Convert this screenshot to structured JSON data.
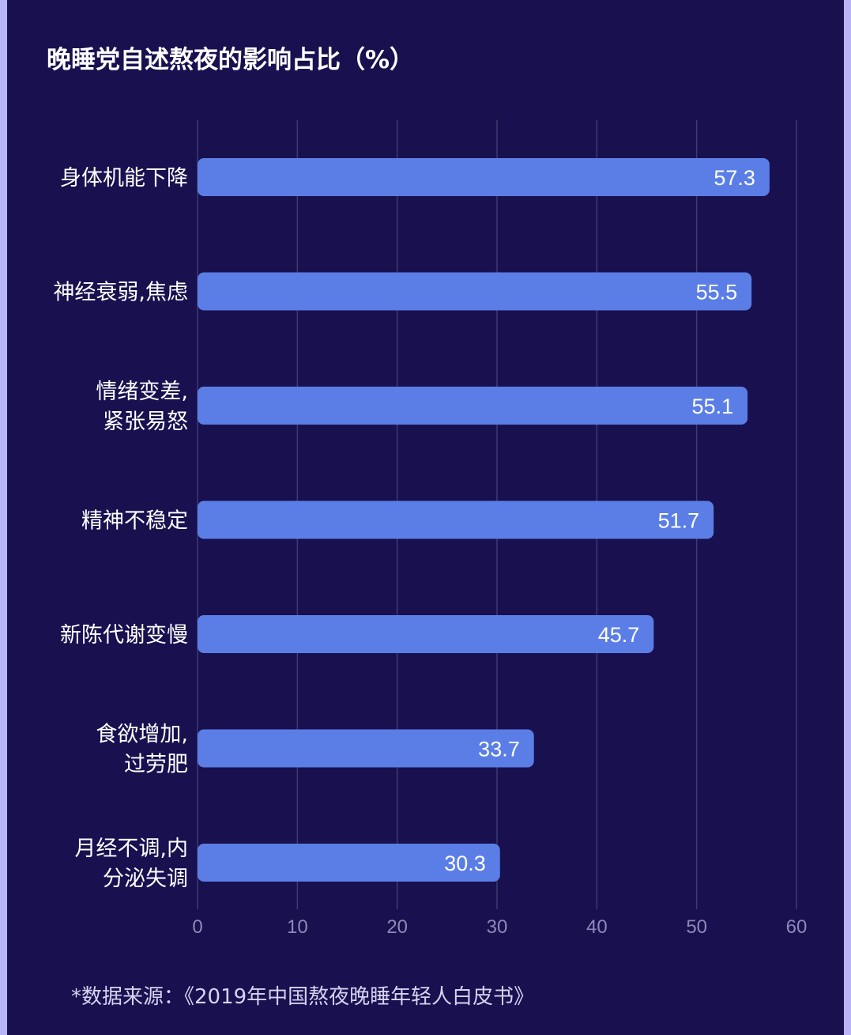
{
  "colors": {
    "background": "#18104f",
    "outer": "#b9b4f7",
    "bar": "#5b7ee6",
    "grid": "#3e3a6e",
    "tick_label": "#8d89b8",
    "category_label": "#ffffff",
    "value_label": "#ffffff"
  },
  "chart_data": {
    "type": "bar",
    "orientation": "horizontal",
    "title": "晚睡党自述熬夜的影响占比（%）",
    "categories": [
      [
        "身体机能下降"
      ],
      [
        "神经衰弱,焦虑"
      ],
      [
        "情绪变差,",
        "紧张易怒"
      ],
      [
        "精神不稳定"
      ],
      [
        "新陈代谢变慢"
      ],
      [
        "食欲增加,",
        "过劳肥"
      ],
      [
        "月经不调,内",
        "分泌失调"
      ]
    ],
    "values": [
      57.3,
      55.5,
      55.1,
      51.7,
      45.7,
      33.7,
      30.3
    ],
    "value_labels": [
      "57.3",
      "55.5",
      "55.1",
      "51.7",
      "45.7",
      "33.7",
      "30.3"
    ],
    "xlim": [
      0,
      60
    ],
    "xticks": [
      0,
      10,
      20,
      30,
      40,
      50,
      60
    ],
    "xtick_labels": [
      "0",
      "10",
      "20",
      "30",
      "40",
      "50",
      "60"
    ],
    "grid": true,
    "legend": "none"
  },
  "source_note": "*数据来源：《2019年中国熬夜晚睡年轻人白皮书》"
}
